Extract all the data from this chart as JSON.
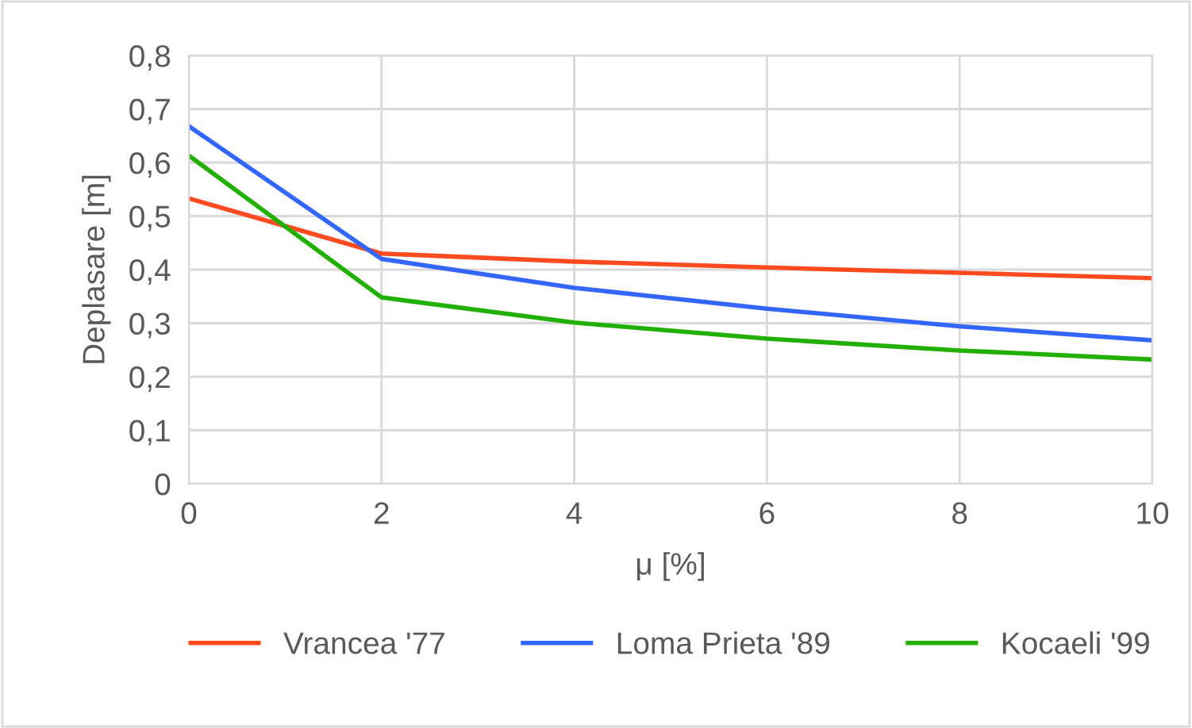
{
  "chart_data": {
    "type": "line",
    "xlabel": "μ [%]",
    "ylabel": "Deplasare [m]",
    "x": [
      0,
      2,
      4,
      6,
      8,
      10
    ],
    "series": [
      {
        "name": "Vrancea '77",
        "color": "#ff4b1f",
        "values": [
          0.533,
          0.43,
          0.415,
          0.404,
          0.394,
          0.384
        ]
      },
      {
        "name": "Loma Prieta '89",
        "color": "#3366ff",
        "values": [
          0.668,
          0.42,
          0.366,
          0.327,
          0.294,
          0.268
        ]
      },
      {
        "name": "Kocaeli '99",
        "color": "#22b000",
        "values": [
          0.613,
          0.348,
          0.301,
          0.271,
          0.249,
          0.232
        ]
      }
    ],
    "xlim": [
      0,
      10
    ],
    "xticks": [
      0,
      2,
      4,
      6,
      8,
      10
    ],
    "ylim": [
      0,
      0.8
    ],
    "yticks": [
      0,
      {
        "value": 0.1,
        "label": "0,1"
      },
      {
        "value": 0.2,
        "label": "0,2"
      },
      {
        "value": 0.3,
        "label": "0,3"
      },
      {
        "value": 0.4,
        "label": "0,4"
      },
      {
        "value": 0.5,
        "label": "0,5"
      },
      {
        "value": 0.6,
        "label": "0,6"
      },
      {
        "value": 0.7,
        "label": "0,7"
      },
      {
        "value": 0.8,
        "label": "0,8"
      }
    ],
    "grid": true,
    "legend": "bottom",
    "marker": "none",
    "line_style": "solid"
  }
}
